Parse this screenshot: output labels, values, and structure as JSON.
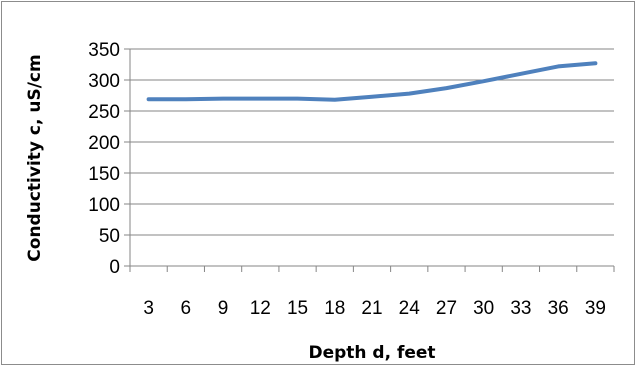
{
  "chart_data": {
    "type": "line",
    "title": "",
    "xlabel": "Depth d, feet",
    "ylabel": "Conductivity c, uS/cm",
    "categories": [
      "3",
      "6",
      "9",
      "12",
      "15",
      "18",
      "21",
      "24",
      "27",
      "30",
      "33",
      "36",
      "39"
    ],
    "series": [
      {
        "values": [
          269,
          269,
          270,
          270,
          270,
          268,
          273,
          278,
          287,
          298,
          310,
          322,
          327
        ]
      }
    ],
    "ylim": [
      0,
      350
    ],
    "yticks": [
      0,
      50,
      100,
      150,
      200,
      250,
      300,
      350
    ],
    "grid": "horizontal",
    "legend": "none",
    "line_color": "#4f81bd",
    "grid_color": "#868686",
    "axis_color": "#868686"
  }
}
